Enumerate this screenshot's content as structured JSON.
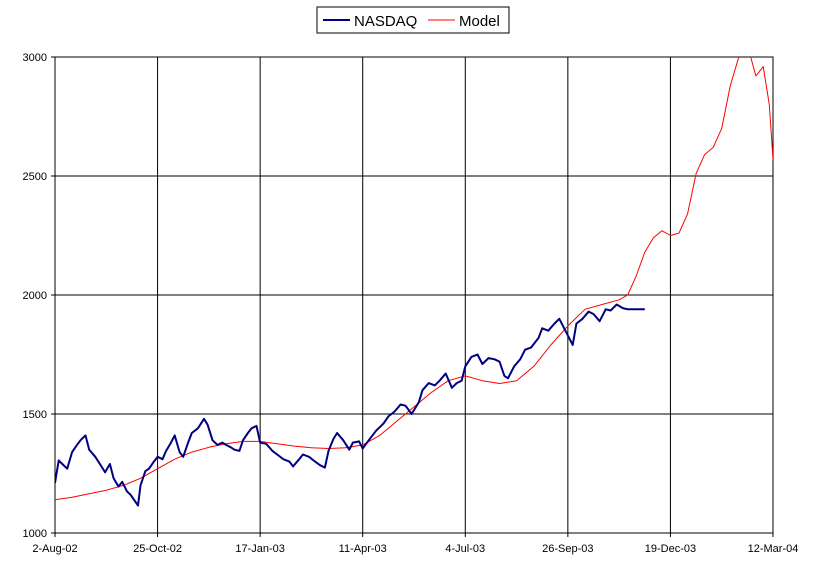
{
  "chart_data": {
    "type": "line",
    "title": "",
    "xlabel": "",
    "ylabel": "",
    "legend_position": "top-center",
    "grid": true,
    "ylim": [
      1000,
      3000
    ],
    "y_ticks": [
      1000,
      1500,
      2000,
      2500,
      3000
    ],
    "x_range": [
      "2002-08-02",
      "2004-03-12"
    ],
    "x_ticks": [
      {
        "date": "2002-08-02",
        "label": "2-Aug-02"
      },
      {
        "date": "2002-10-25",
        "label": "25-Oct-02"
      },
      {
        "date": "2003-01-17",
        "label": "17-Jan-03"
      },
      {
        "date": "2003-04-11",
        "label": "11-Apr-03"
      },
      {
        "date": "2003-07-04",
        "label": "4-Jul-03"
      },
      {
        "date": "2003-09-26",
        "label": "26-Sep-03"
      },
      {
        "date": "2003-12-19",
        "label": "19-Dec-03"
      },
      {
        "date": "2004-03-12",
        "label": "12-Mar-04"
      }
    ],
    "series": [
      {
        "name": "NASDAQ",
        "color": "#000080",
        "points": [
          [
            "2002-08-02",
            1210
          ],
          [
            "2002-08-05",
            1305
          ],
          [
            "2002-08-08",
            1290
          ],
          [
            "2002-08-12",
            1270
          ],
          [
            "2002-08-16",
            1340
          ],
          [
            "2002-08-20",
            1370
          ],
          [
            "2002-08-23",
            1390
          ],
          [
            "2002-08-27",
            1410
          ],
          [
            "2002-08-30",
            1350
          ],
          [
            "2002-09-04",
            1320
          ],
          [
            "2002-09-09",
            1280
          ],
          [
            "2002-09-12",
            1255
          ],
          [
            "2002-09-16",
            1290
          ],
          [
            "2002-09-19",
            1230
          ],
          [
            "2002-09-23",
            1195
          ],
          [
            "2002-09-26",
            1215
          ],
          [
            "2002-09-30",
            1175
          ],
          [
            "2002-10-03",
            1160
          ],
          [
            "2002-10-07",
            1130
          ],
          [
            "2002-10-09",
            1115
          ],
          [
            "2002-10-11",
            1200
          ],
          [
            "2002-10-15",
            1260
          ],
          [
            "2002-10-18",
            1270
          ],
          [
            "2002-10-22",
            1300
          ],
          [
            "2002-10-25",
            1320
          ],
          [
            "2002-10-29",
            1310
          ],
          [
            "2002-11-01",
            1345
          ],
          [
            "2002-11-05",
            1380
          ],
          [
            "2002-11-08",
            1410
          ],
          [
            "2002-11-12",
            1340
          ],
          [
            "2002-11-15",
            1320
          ],
          [
            "2002-11-19",
            1380
          ],
          [
            "2002-11-22",
            1420
          ],
          [
            "2002-11-27",
            1440
          ],
          [
            "2002-12-02",
            1480
          ],
          [
            "2002-12-05",
            1455
          ],
          [
            "2002-12-09",
            1390
          ],
          [
            "2002-12-13",
            1370
          ],
          [
            "2002-12-17",
            1380
          ],
          [
            "2002-12-20",
            1370
          ],
          [
            "2002-12-24",
            1360
          ],
          [
            "2002-12-27",
            1350
          ],
          [
            "2002-12-31",
            1345
          ],
          [
            "2003-01-03",
            1390
          ],
          [
            "2003-01-07",
            1420
          ],
          [
            "2003-01-10",
            1440
          ],
          [
            "2003-01-14",
            1450
          ],
          [
            "2003-01-17",
            1380
          ],
          [
            "2003-01-22",
            1375
          ],
          [
            "2003-01-27",
            1345
          ],
          [
            "2003-01-31",
            1330
          ],
          [
            "2003-02-05",
            1310
          ],
          [
            "2003-02-10",
            1300
          ],
          [
            "2003-02-13",
            1280
          ],
          [
            "2003-02-18",
            1310
          ],
          [
            "2003-02-21",
            1330
          ],
          [
            "2003-02-26",
            1320
          ],
          [
            "2003-03-03",
            1300
          ],
          [
            "2003-03-07",
            1285
          ],
          [
            "2003-03-11",
            1275
          ],
          [
            "2003-03-14",
            1345
          ],
          [
            "2003-03-18",
            1395
          ],
          [
            "2003-03-21",
            1420
          ],
          [
            "2003-03-26",
            1390
          ],
          [
            "2003-03-31",
            1350
          ],
          [
            "2003-04-03",
            1380
          ],
          [
            "2003-04-08",
            1385
          ],
          [
            "2003-04-11",
            1355
          ],
          [
            "2003-04-16",
            1390
          ],
          [
            "2003-04-22",
            1430
          ],
          [
            "2003-04-28",
            1460
          ],
          [
            "2003-05-02",
            1490
          ],
          [
            "2003-05-07",
            1510
          ],
          [
            "2003-05-12",
            1540
          ],
          [
            "2003-05-16",
            1535
          ],
          [
            "2003-05-21",
            1500
          ],
          [
            "2003-05-27",
            1550
          ],
          [
            "2003-05-30",
            1600
          ],
          [
            "2003-06-04",
            1630
          ],
          [
            "2003-06-09",
            1620
          ],
          [
            "2003-06-13",
            1640
          ],
          [
            "2003-06-18",
            1670
          ],
          [
            "2003-06-23",
            1610
          ],
          [
            "2003-06-27",
            1630
          ],
          [
            "2003-07-01",
            1640
          ],
          [
            "2003-07-04",
            1700
          ],
          [
            "2003-07-09",
            1740
          ],
          [
            "2003-07-14",
            1750
          ],
          [
            "2003-07-18",
            1710
          ],
          [
            "2003-07-23",
            1735
          ],
          [
            "2003-07-28",
            1730
          ],
          [
            "2003-08-01",
            1720
          ],
          [
            "2003-08-05",
            1660
          ],
          [
            "2003-08-08",
            1650
          ],
          [
            "2003-08-13",
            1700
          ],
          [
            "2003-08-18",
            1730
          ],
          [
            "2003-08-22",
            1770
          ],
          [
            "2003-08-27",
            1780
          ],
          [
            "2003-09-02",
            1820
          ],
          [
            "2003-09-05",
            1860
          ],
          [
            "2003-09-10",
            1850
          ],
          [
            "2003-09-15",
            1880
          ],
          [
            "2003-09-19",
            1900
          ],
          [
            "2003-09-24",
            1850
          ],
          [
            "2003-09-30",
            1790
          ],
          [
            "2003-10-03",
            1880
          ],
          [
            "2003-10-08",
            1900
          ],
          [
            "2003-10-13",
            1930
          ],
          [
            "2003-10-17",
            1920
          ],
          [
            "2003-10-22",
            1890
          ],
          [
            "2003-10-27",
            1940
          ],
          [
            "2003-10-31",
            1935
          ],
          [
            "2003-11-05",
            1960
          ],
          [
            "2003-11-10",
            1945
          ],
          [
            "2003-11-14",
            1940
          ],
          [
            "2003-11-21",
            1940
          ],
          [
            "2003-11-28",
            1940
          ]
        ]
      },
      {
        "name": "Model",
        "color": "#ff0000",
        "points": [
          [
            "2002-08-02",
            1140
          ],
          [
            "2002-08-16",
            1150
          ],
          [
            "2002-08-30",
            1165
          ],
          [
            "2002-09-13",
            1180
          ],
          [
            "2002-09-27",
            1200
          ],
          [
            "2002-10-11",
            1230
          ],
          [
            "2002-10-25",
            1270
          ],
          [
            "2002-11-08",
            1310
          ],
          [
            "2002-11-22",
            1340
          ],
          [
            "2002-12-06",
            1360
          ],
          [
            "2002-12-20",
            1375
          ],
          [
            "2003-01-03",
            1385
          ],
          [
            "2003-01-17",
            1385
          ],
          [
            "2003-01-31",
            1375
          ],
          [
            "2003-02-14",
            1365
          ],
          [
            "2003-02-28",
            1358
          ],
          [
            "2003-03-14",
            1355
          ],
          [
            "2003-03-28",
            1358
          ],
          [
            "2003-04-11",
            1370
          ],
          [
            "2003-04-25",
            1410
          ],
          [
            "2003-05-09",
            1470
          ],
          [
            "2003-05-23",
            1530
          ],
          [
            "2003-06-06",
            1590
          ],
          [
            "2003-06-20",
            1640
          ],
          [
            "2003-07-04",
            1660
          ],
          [
            "2003-07-18",
            1640
          ],
          [
            "2003-08-01",
            1628
          ],
          [
            "2003-08-15",
            1640
          ],
          [
            "2003-08-29",
            1700
          ],
          [
            "2003-09-12",
            1790
          ],
          [
            "2003-09-26",
            1870
          ],
          [
            "2003-10-10",
            1940
          ],
          [
            "2003-10-24",
            1960
          ],
          [
            "2003-11-07",
            1980
          ],
          [
            "2003-11-14",
            2000
          ],
          [
            "2003-11-21",
            2080
          ],
          [
            "2003-11-28",
            2180
          ],
          [
            "2003-12-05",
            2240
          ],
          [
            "2003-12-12",
            2270
          ],
          [
            "2003-12-19",
            2250
          ],
          [
            "2003-12-26",
            2260
          ],
          [
            "2004-01-02",
            2340
          ],
          [
            "2004-01-09",
            2510
          ],
          [
            "2004-01-16",
            2590
          ],
          [
            "2004-01-23",
            2620
          ],
          [
            "2004-01-30",
            2700
          ],
          [
            "2004-02-06",
            2880
          ],
          [
            "2004-02-13",
            3000
          ],
          [
            "2004-02-20",
            3050
          ],
          [
            "2004-02-27",
            2920
          ],
          [
            "2004-03-04",
            2960
          ],
          [
            "2004-03-09",
            2800
          ],
          [
            "2004-03-12",
            2570
          ]
        ]
      }
    ]
  }
}
